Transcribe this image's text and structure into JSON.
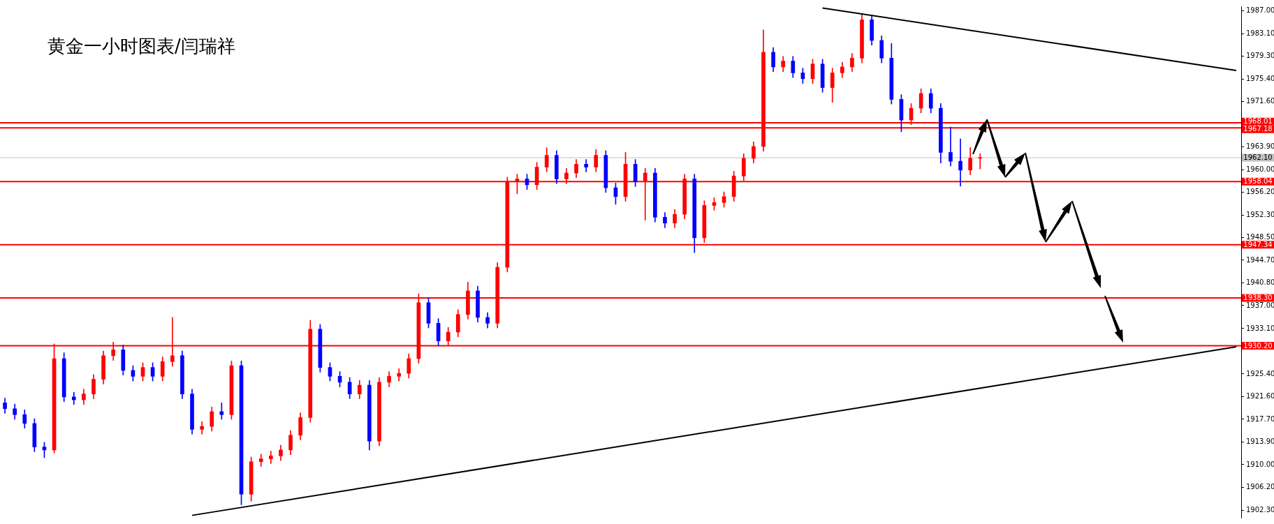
{
  "chart_data": {
    "type": "candlestick",
    "title": "黄金一小时图表/闫瑞祥",
    "categories": [
      null,
      null,
      null,
      null,
      null,
      null,
      null,
      null,
      null,
      null,
      null,
      null,
      null,
      null,
      null,
      null,
      null,
      null,
      null,
      null,
      null,
      null,
      null,
      null,
      null,
      null,
      null,
      null,
      null,
      null,
      null,
      null,
      null,
      null,
      null,
      null,
      null,
      null,
      null,
      null,
      null,
      null,
      null,
      null,
      null,
      null,
      null,
      null,
      null,
      null,
      null,
      null,
      null,
      null,
      null,
      null,
      null,
      null,
      null,
      null,
      null,
      null,
      null,
      null,
      null,
      null,
      null,
      null,
      null,
      null,
      null,
      null,
      null,
      null,
      null,
      null,
      null,
      null,
      null,
      null,
      null,
      null,
      null,
      null,
      null,
      null,
      null,
      null,
      null,
      null,
      null,
      null,
      null,
      null,
      null,
      null,
      null,
      null,
      null,
      null,
      null,
      null,
      null,
      null,
      null,
      null,
      null,
      null,
      null,
      null,
      null,
      null,
      null,
      null,
      null,
      null,
      null,
      null,
      null,
      null,
      null,
      null,
      null,
      null,
      null,
      null
    ],
    "ohlc": [
      [
        1920.5,
        1921.3,
        1918.7,
        1919.5
      ],
      [
        1919.5,
        1920.3,
        1917.7,
        1918.5
      ],
      [
        1918.5,
        1919.3,
        1916.2,
        1917
      ],
      [
        1917,
        1917.8,
        1912.2,
        1913
      ],
      [
        1913,
        1913.8,
        1911.2,
        1912.5
      ],
      [
        1912.5,
        1930.5,
        1912,
        1928
      ],
      [
        1928,
        1929,
        1920.7,
        1921.5
      ],
      [
        1921.5,
        1922.3,
        1920.2,
        1921
      ],
      [
        1921,
        1922.8,
        1920.2,
        1922
      ],
      [
        1922,
        1925.3,
        1921.2,
        1924.5
      ],
      [
        1924.5,
        1929.3,
        1923.7,
        1928.5
      ],
      [
        1928.5,
        1930.8,
        1927.7,
        1929.5
      ],
      [
        1929.5,
        1930.3,
        1925.2,
        1926
      ],
      [
        1926,
        1926.8,
        1924.2,
        1925
      ],
      [
        1925,
        1927.3,
        1924.2,
        1926.5
      ],
      [
        1926.5,
        1927.3,
        1924.2,
        1925
      ],
      [
        1925,
        1928.3,
        1924.2,
        1927.5
      ],
      [
        1927.5,
        1935,
        1926.7,
        1928.5
      ],
      [
        1928.5,
        1929.3,
        1921.2,
        1922
      ],
      [
        1922,
        1922.8,
        1915.2,
        1916
      ],
      [
        1916,
        1917.3,
        1915.2,
        1916.5
      ],
      [
        1916.5,
        1919.8,
        1915.7,
        1919
      ],
      [
        1919,
        1920.5,
        1917.7,
        1918.5
      ],
      [
        1918.5,
        1927.6,
        1917.7,
        1926.8
      ],
      [
        1926.8,
        1927.6,
        1903.2,
        1905
      ],
      [
        1905,
        1911.3,
        1903.8,
        1910.5
      ],
      [
        1910.5,
        1911.8,
        1909.7,
        1911
      ],
      [
        1911,
        1912.3,
        1910.2,
        1911.5
      ],
      [
        1911.5,
        1913.3,
        1910.7,
        1912.5
      ],
      [
        1912.5,
        1915.8,
        1911.7,
        1915
      ],
      [
        1915,
        1918.8,
        1914.2,
        1918
      ],
      [
        1918,
        1934.5,
        1917.2,
        1933
      ],
      [
        1933,
        1933.8,
        1925.7,
        1926.5
      ],
      [
        1926.5,
        1927.3,
        1924.2,
        1925
      ],
      [
        1925,
        1925.8,
        1923.2,
        1924
      ],
      [
        1924,
        1924.8,
        1921.2,
        1922
      ],
      [
        1922,
        1924.3,
        1921.2,
        1923.5
      ],
      [
        1923.5,
        1924.3,
        1912.5,
        1914
      ],
      [
        1914,
        1924.8,
        1913.2,
        1924
      ],
      [
        1924,
        1925.8,
        1923.2,
        1925
      ],
      [
        1925,
        1926.3,
        1924.2,
        1925.5
      ],
      [
        1925.5,
        1928.8,
        1924.7,
        1928
      ],
      [
        1928,
        1939,
        1927.2,
        1937.5
      ],
      [
        1937.5,
        1938.3,
        1933.2,
        1934
      ],
      [
        1934,
        1934.8,
        1930.2,
        1931
      ],
      [
        1931,
        1933.3,
        1930.2,
        1932.5
      ],
      [
        1932.5,
        1936.3,
        1931.7,
        1935.5
      ],
      [
        1935.5,
        1941,
        1934.7,
        1939.5
      ],
      [
        1939.5,
        1940.3,
        1934.2,
        1935
      ],
      [
        1935,
        1935.8,
        1933.2,
        1934
      ],
      [
        1934,
        1944.3,
        1933.2,
        1943.5
      ],
      [
        1943.5,
        1958.8,
        1942.7,
        1958
      ],
      [
        1958,
        1959.3,
        1956,
        1958.5
      ],
      [
        1958.5,
        1959.3,
        1956.7,
        1957.5
      ],
      [
        1957.5,
        1961.3,
        1956.7,
        1960.5
      ],
      [
        1960.5,
        1963.8,
        1959.7,
        1962.5
      ],
      [
        1962.5,
        1963.3,
        1957.7,
        1958.5
      ],
      [
        1958.5,
        1960.3,
        1957.7,
        1959.5
      ],
      [
        1959.5,
        1961.8,
        1958.7,
        1961
      ],
      [
        1961,
        1961.8,
        1959.7,
        1960.5
      ],
      [
        1960.5,
        1963.5,
        1959.7,
        1962.5
      ],
      [
        1962.5,
        1963.3,
        1956.2,
        1957
      ],
      [
        1957,
        1957.8,
        1954.2,
        1955.5
      ],
      [
        1955.5,
        1963,
        1954.7,
        1961
      ],
      [
        1961,
        1961.8,
        1957.2,
        1958
      ],
      [
        1958,
        1960.3,
        1951.5,
        1959.5
      ],
      [
        1959.5,
        1960.3,
        1951.2,
        1952
      ],
      [
        1952,
        1952.8,
        1950.2,
        1951
      ],
      [
        1951,
        1953.3,
        1950.2,
        1952.5
      ],
      [
        1952.5,
        1959.3,
        1951.7,
        1958.5
      ],
      [
        1958.5,
        1959.3,
        1946,
        1948.5
      ],
      [
        1948.5,
        1954.8,
        1947.7,
        1954
      ],
      [
        1954,
        1955.3,
        1953.2,
        1954.5
      ],
      [
        1954.5,
        1956.3,
        1953.7,
        1955.5
      ],
      [
        1955.5,
        1959.8,
        1954.7,
        1959
      ],
      [
        1959,
        1962.8,
        1958.2,
        1962
      ],
      [
        1962,
        1964.8,
        1961.2,
        1964
      ],
      [
        1964,
        1983.8,
        1963.2,
        1980
      ],
      [
        1980,
        1980.8,
        1976.7,
        1977.5
      ],
      [
        1977.5,
        1979.3,
        1976.7,
        1978.5
      ],
      [
        1978.5,
        1979.3,
        1975.7,
        1976.5
      ],
      [
        1976.5,
        1977.3,
        1974.7,
        1975.5
      ],
      [
        1975.5,
        1978.8,
        1974.7,
        1978
      ],
      [
        1978,
        1978.8,
        1973.2,
        1974
      ],
      [
        1974,
        1977.3,
        1971.5,
        1976.5
      ],
      [
        1976.5,
        1978.3,
        1975.7,
        1977.5
      ],
      [
        1977.5,
        1979.8,
        1976.7,
        1979
      ],
      [
        1979,
        1986.6,
        1978.2,
        1985.5
      ],
      [
        1985.5,
        1986.3,
        1981.2,
        1982
      ],
      [
        1982,
        1982.8,
        1978.2,
        1979
      ],
      [
        1979,
        1981.5,
        1971.2,
        1972
      ],
      [
        1972,
        1972.8,
        1966.5,
        1968.5
      ],
      [
        1968.5,
        1971.3,
        1967.7,
        1970.5
      ],
      [
        1970.5,
        1973.8,
        1969.7,
        1973
      ],
      [
        1973,
        1973.8,
        1969.7,
        1970.5
      ],
      [
        1970.5,
        1971.3,
        1961.2,
        1963
      ],
      [
        1963,
        1967.3,
        1960.7,
        1961.5
      ],
      [
        1961.5,
        1965.3,
        1957.3,
        1960
      ],
      [
        1960,
        1963.8,
        1959.2,
        1962
      ],
      [
        1962,
        1962.8,
        1960.2,
        1962.1
      ],
      null,
      null,
      null,
      null,
      null,
      null,
      null,
      null,
      null,
      null,
      null,
      null,
      null,
      null,
      null,
      null,
      null,
      null,
      null,
      null,
      null,
      null,
      null,
      null,
      null,
      null
    ],
    "colors": [
      "#0000ff",
      "#0000ff",
      "#0000ff",
      "#0000ff",
      "#0000ff",
      "#ff0000",
      "#0000ff",
      "#0000ff",
      "#ff0000",
      "#ff0000",
      "#ff0000",
      "#ff0000",
      "#0000ff",
      "#0000ff",
      "#ff0000",
      "#0000ff",
      "#ff0000",
      "#ff0000",
      "#0000ff",
      "#0000ff",
      "#ff0000",
      "#ff0000",
      "#0000ff",
      "#ff0000",
      "#0000ff",
      "#ff0000",
      "#ff0000",
      "#ff0000",
      "#ff0000",
      "#ff0000",
      "#ff0000",
      "#ff0000",
      "#0000ff",
      "#0000ff",
      "#0000ff",
      "#0000ff",
      "#ff0000",
      "#0000ff",
      "#ff0000",
      "#ff0000",
      "#ff0000",
      "#ff0000",
      "#ff0000",
      "#0000ff",
      "#0000ff",
      "#ff0000",
      "#ff0000",
      "#ff0000",
      "#0000ff",
      "#0000ff",
      "#ff0000",
      "#ff0000",
      "#ff0000",
      "#0000ff",
      "#ff0000",
      "#ff0000",
      "#0000ff",
      "#ff0000",
      "#ff0000",
      "#0000ff",
      "#ff0000",
      "#0000ff",
      "#0000ff",
      "#ff0000",
      "#0000ff",
      "#ff0000",
      "#0000ff",
      "#0000ff",
      "#ff0000",
      "#ff0000",
      "#0000ff",
      "#ff0000",
      "#ff0000",
      "#ff0000",
      "#ff0000",
      "#ff0000",
      "#ff0000",
      "#ff0000",
      "#0000ff",
      "#ff0000",
      "#0000ff",
      "#0000ff",
      "#ff0000",
      "#0000ff",
      "#ff0000",
      "#ff0000",
      "#ff0000",
      "#ff0000",
      "#0000ff",
      "#0000ff",
      "#0000ff",
      "#0000ff",
      "#ff0000",
      "#ff0000",
      "#0000ff",
      "#0000ff",
      "#0000ff",
      "#0000ff",
      "#ff0000",
      "#ff0000",
      null,
      null,
      null,
      null,
      null,
      null,
      null,
      null,
      null,
      null,
      null,
      null,
      null,
      null,
      null,
      null,
      null,
      null,
      null,
      null,
      null,
      null,
      null,
      null,
      null,
      null
    ],
    "series": [
      {
        "type": "line",
        "color": "#000000",
        "values": [
          null,
          null,
          null,
          null,
          null,
          null,
          null,
          null,
          null,
          null,
          null,
          null,
          null,
          null,
          null,
          null,
          null,
          null,
          null,
          null,
          null,
          null,
          null,
          null,
          null,
          null,
          null,
          null,
          null,
          null,
          null,
          null,
          null,
          null,
          null,
          null,
          null,
          null,
          null,
          null,
          null,
          null,
          null,
          null,
          null,
          null,
          null,
          null,
          null,
          null,
          null,
          null,
          null,
          null,
          null,
          null,
          null,
          null,
          null,
          null,
          null,
          null,
          null,
          null,
          null,
          null,
          null,
          null,
          null,
          null,
          null,
          null,
          null,
          null,
          null,
          null,
          null,
          null,
          null,
          null,
          null,
          null,
          null,
          1987.5,
          null,
          null,
          null,
          null,
          null,
          null,
          null,
          null,
          null,
          null,
          null,
          null,
          null,
          null,
          null,
          null,
          null,
          null,
          null,
          null,
          null,
          null,
          null,
          null,
          null,
          null,
          null,
          null,
          null,
          null,
          null,
          null,
          null,
          null,
          null,
          null,
          null,
          null,
          null,
          null,
          null,
          1976.9
        ]
      },
      {
        "type": "line",
        "color": "#000000",
        "values": [
          null,
          null,
          null,
          null,
          null,
          null,
          null,
          null,
          null,
          null,
          null,
          null,
          null,
          null,
          null,
          null,
          null,
          null,
          null,
          1901.4,
          null,
          null,
          null,
          null,
          null,
          null,
          null,
          null,
          null,
          null,
          null,
          null,
          null,
          null,
          null,
          null,
          null,
          null,
          null,
          null,
          null,
          null,
          null,
          null,
          null,
          null,
          null,
          null,
          null,
          null,
          null,
          null,
          null,
          null,
          null,
          null,
          null,
          null,
          null,
          null,
          null,
          null,
          null,
          null,
          null,
          null,
          null,
          null,
          null,
          null,
          null,
          null,
          null,
          null,
          null,
          null,
          null,
          null,
          null,
          null,
          null,
          null,
          null,
          null,
          null,
          null,
          null,
          null,
          null,
          null,
          null,
          null,
          null,
          null,
          null,
          null,
          null,
          null,
          null,
          null,
          null,
          null,
          null,
          null,
          null,
          null,
          null,
          null,
          null,
          null,
          null,
          null,
          null,
          null,
          null,
          null,
          null,
          null,
          null,
          null,
          null,
          null,
          null,
          null,
          null,
          1930
        ]
      }
    ],
    "ylim": [
      1901,
      1987.8
    ],
    "yticks": [
      {
        "value": 1987,
        "label": "1987.00"
      },
      {
        "value": 1983.1,
        "label": "1983.10"
      },
      {
        "value": 1979.3,
        "label": "1979.30"
      },
      {
        "value": 1975.4,
        "label": "1975.40"
      },
      {
        "value": 1971.6,
        "label": "1971.60"
      },
      {
        "value": 1963.9,
        "label": "1963.90"
      },
      {
        "value": 1960,
        "label": "1960.00"
      },
      {
        "value": 1956.2,
        "label": "1956.20"
      },
      {
        "value": 1952.3,
        "label": "1952.30"
      },
      {
        "value": 1948.5,
        "label": "1948.50"
      },
      {
        "value": 1944.7,
        "label": "1944.70"
      },
      {
        "value": 1940.8,
        "label": "1940.80"
      },
      {
        "value": 1937,
        "label": "1937.00"
      },
      {
        "value": 1933.1,
        "label": "1933.10"
      },
      {
        "value": 1925.4,
        "label": "1925.40"
      },
      {
        "value": 1921.6,
        "label": "1921.60"
      },
      {
        "value": 1917.7,
        "label": "1917.70"
      },
      {
        "value": 1913.9,
        "label": "1913.90"
      },
      {
        "value": 1910,
        "label": "1910.00"
      },
      {
        "value": 1906.2,
        "label": "1906.20"
      },
      {
        "value": 1902.3,
        "label": "1902.30"
      }
    ],
    "ref_lines": [
      {
        "axis": "y",
        "value": 1968.01,
        "label": "1968.01",
        "color": "#ff0000"
      },
      {
        "axis": "y",
        "value": 1967.18,
        "label": "1967.18",
        "color": "#ff0000"
      },
      {
        "axis": "y",
        "value": 1962.1,
        "label": "1962.10",
        "color": "#c0c0c0"
      },
      {
        "axis": "y",
        "value": 1958.04,
        "label": "1958.04",
        "color": "#ff0000"
      },
      {
        "axis": "y",
        "value": 1947.34,
        "label": "1947.34",
        "color": "#ff0000"
      },
      {
        "axis": "y",
        "value": 1938.3,
        "label": "1938.30",
        "color": "#ff0000"
      },
      {
        "axis": "y",
        "value": 1930.2,
        "label": "1930.20",
        "color": "#ff0000"
      }
    ]
  }
}
